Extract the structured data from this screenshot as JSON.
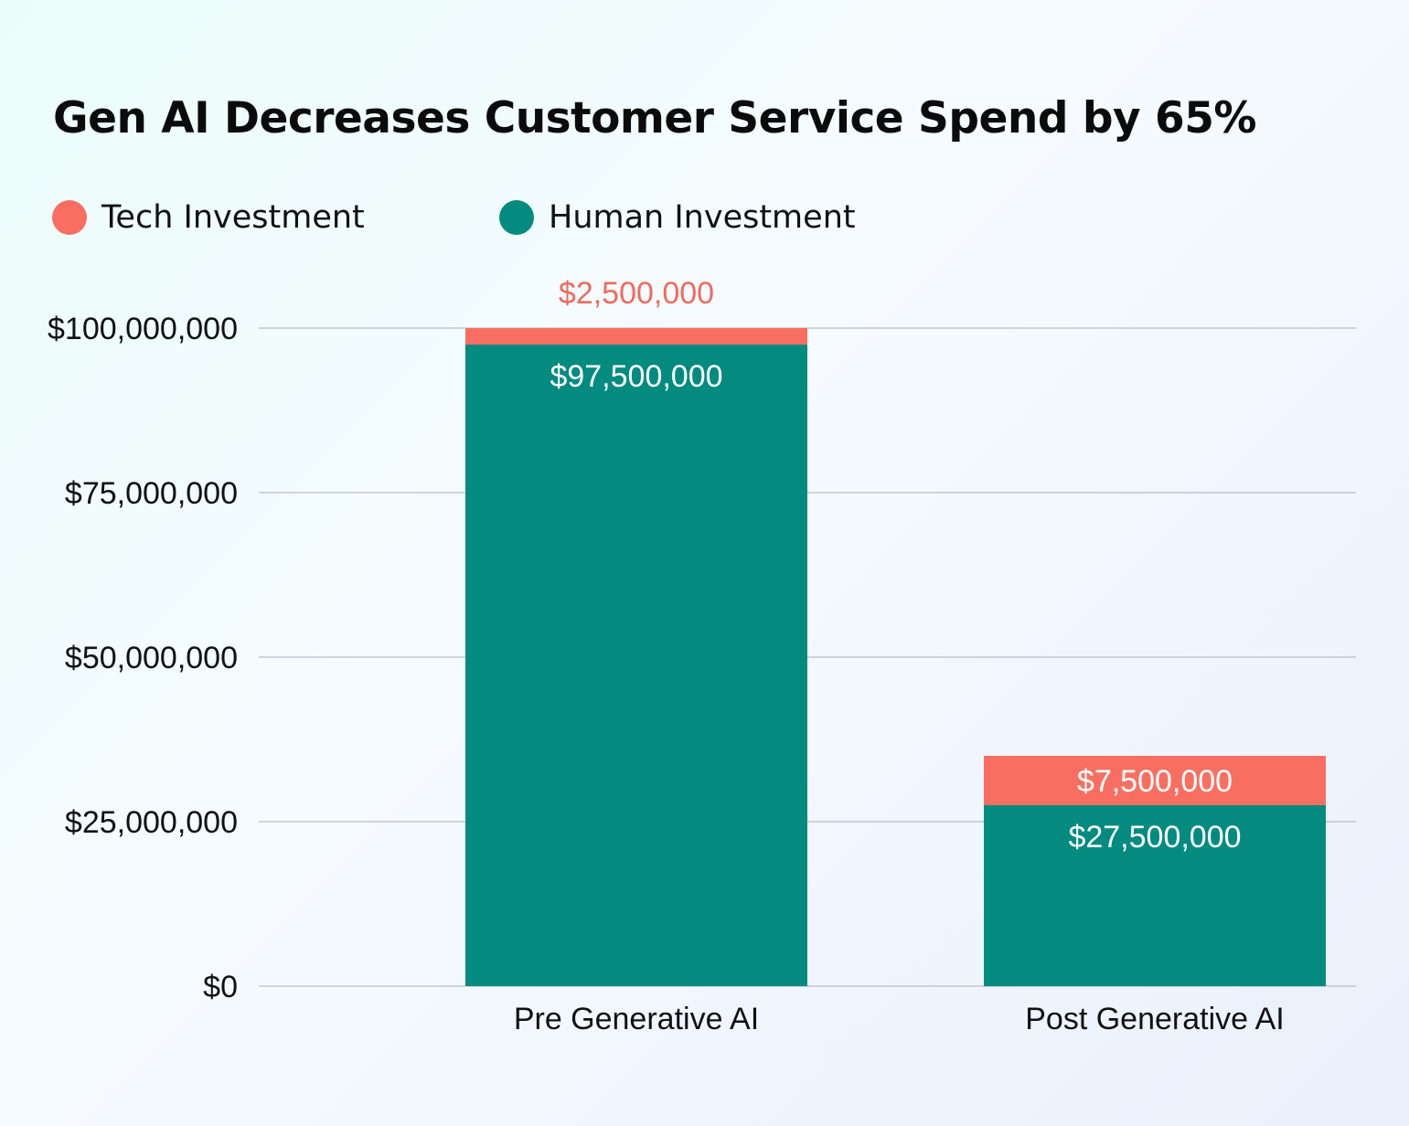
{
  "chart_data": {
    "type": "bar",
    "stacked": true,
    "title": "Gen AI Decreases Customer Service Spend by 65%",
    "categories": [
      "Pre Generative AI",
      "Post Generative AI"
    ],
    "series": [
      {
        "name": "Human Investment",
        "color": "#038b80",
        "values": [
          97500000,
          27500000
        ],
        "labels": [
          "$97,500,000",
          "$27,500,000"
        ],
        "label_color": "#ffffff"
      },
      {
        "name": "Tech Investment",
        "color": "#f86f62",
        "values": [
          2500000,
          7500000
        ],
        "labels": [
          "$2,500,000",
          "$7,500,000"
        ],
        "label_colors": [
          "#ef6a5f",
          "#ffffff"
        ]
      }
    ],
    "legend": [
      "Tech Investment",
      "Human Investment"
    ],
    "legend_position": "top-left",
    "ylim": [
      0,
      100000000
    ],
    "yticks": [
      0,
      25000000,
      50000000,
      75000000,
      100000000
    ],
    "ytick_labels": [
      "$0",
      "$25,000,000",
      "$50,000,000",
      "$75,000,000",
      "$100,000,000"
    ],
    "grid": true,
    "grid_color": "#a9aeb6",
    "xlabel": "",
    "ylabel": ""
  }
}
